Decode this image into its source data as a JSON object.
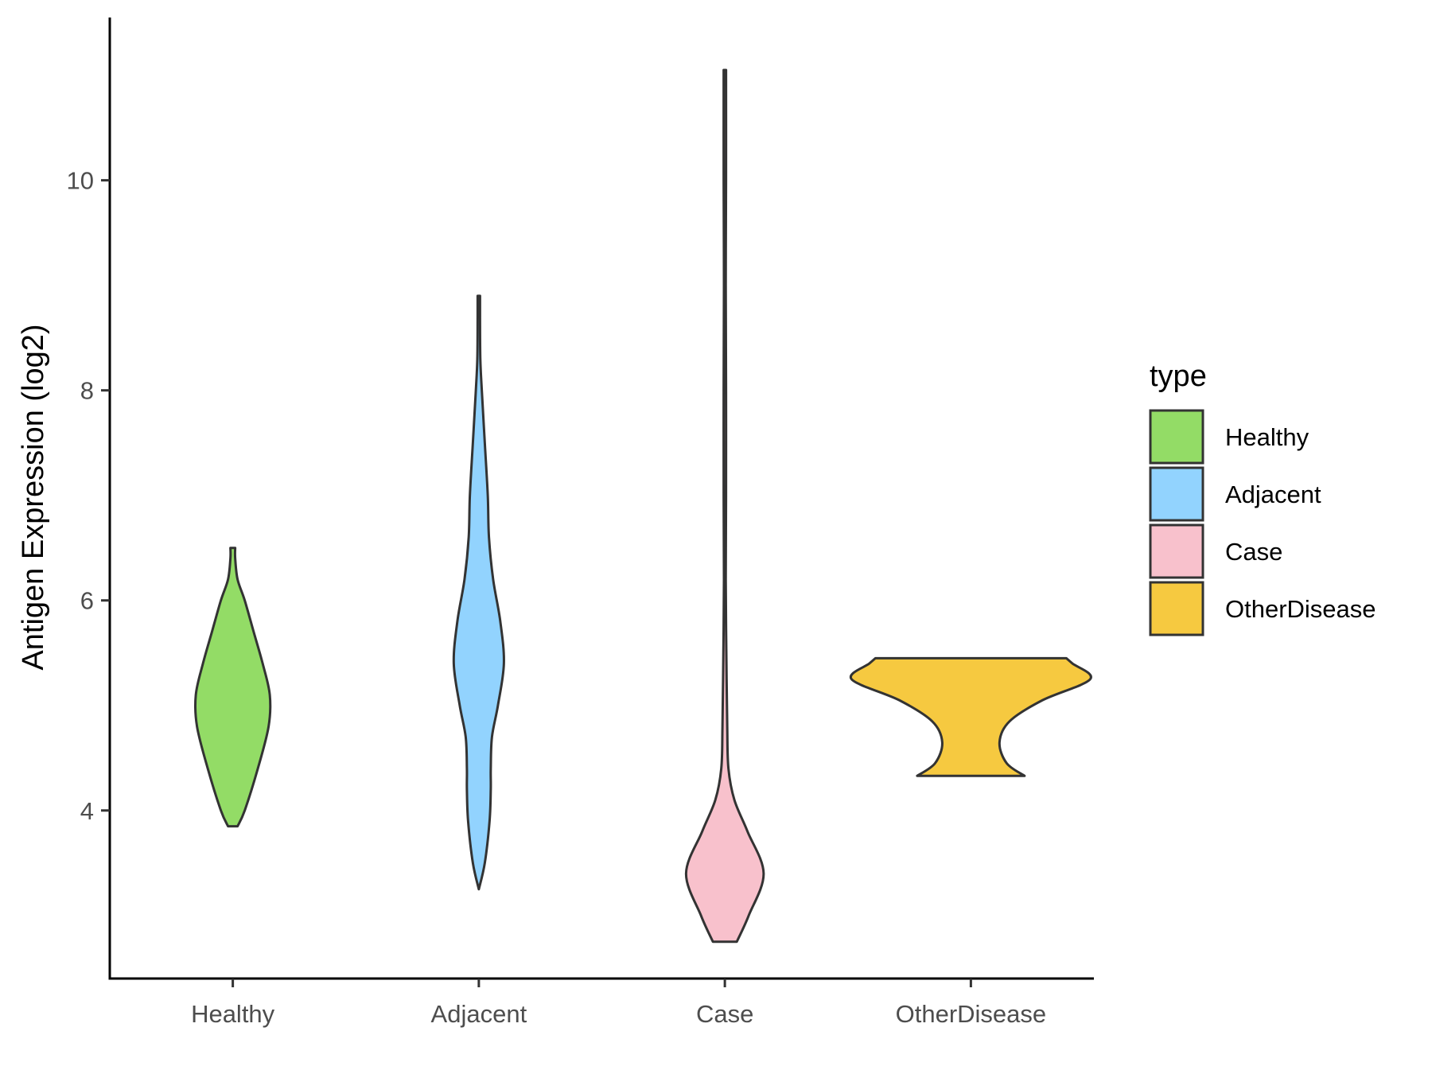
{
  "chart_data": {
    "type": "violin",
    "title": "",
    "xlabel": "",
    "ylabel": "Antigen Expression (log2)",
    "ylim": [
      2.4,
      11.55
    ],
    "yticks": [
      4,
      6,
      8,
      10
    ],
    "categories": [
      "Healthy",
      "Adjacent",
      "Case",
      "OtherDisease"
    ],
    "legend": {
      "title": "type",
      "position": "right",
      "entries": [
        "Healthy",
        "Adjacent",
        "Case",
        "OtherDisease"
      ]
    },
    "colors": {
      "Healthy": "#93dc66",
      "Adjacent": "#92d3fe",
      "Case": "#f8c1cc",
      "OtherDisease": "#f6c940"
    },
    "series": [
      {
        "name": "Healthy",
        "min": 3.85,
        "max": 6.5,
        "profile": [
          [
            3.85,
            0.08
          ],
          [
            4.0,
            0.2
          ],
          [
            4.4,
            0.42
          ],
          [
            4.8,
            0.6
          ],
          [
            5.1,
            0.62
          ],
          [
            5.4,
            0.5
          ],
          [
            5.7,
            0.35
          ],
          [
            6.0,
            0.2
          ],
          [
            6.2,
            0.08
          ],
          [
            6.4,
            0.04
          ],
          [
            6.5,
            0.04
          ]
        ]
      },
      {
        "name": "Adjacent",
        "min": 3.25,
        "max": 8.9,
        "profile": [
          [
            3.25,
            0.0
          ],
          [
            3.5,
            0.1
          ],
          [
            3.9,
            0.18
          ],
          [
            4.2,
            0.2
          ],
          [
            4.4,
            0.2
          ],
          [
            4.7,
            0.22
          ],
          [
            5.0,
            0.32
          ],
          [
            5.4,
            0.42
          ],
          [
            5.8,
            0.36
          ],
          [
            6.2,
            0.24
          ],
          [
            6.6,
            0.17
          ],
          [
            7.0,
            0.15
          ],
          [
            7.5,
            0.1
          ],
          [
            8.0,
            0.05
          ],
          [
            8.3,
            0.025
          ],
          [
            8.7,
            0.02
          ],
          [
            8.9,
            0.02
          ]
        ]
      },
      {
        "name": "Case",
        "min": 2.75,
        "max": 11.05,
        "profile": [
          [
            2.75,
            0.2
          ],
          [
            3.0,
            0.4
          ],
          [
            3.4,
            0.65
          ],
          [
            3.8,
            0.38
          ],
          [
            4.1,
            0.16
          ],
          [
            4.4,
            0.06
          ],
          [
            4.8,
            0.04
          ],
          [
            5.5,
            0.025
          ],
          [
            6.2,
            0.015
          ],
          [
            7.0,
            0.02
          ],
          [
            8.0,
            0.02
          ],
          [
            9.0,
            0.015
          ],
          [
            10.0,
            0.02
          ],
          [
            11.05,
            0.02
          ]
        ]
      },
      {
        "name": "OtherDisease",
        "min": 4.33,
        "max": 5.45,
        "profile": [
          [
            4.33,
            0.9
          ],
          [
            4.45,
            0.6
          ],
          [
            4.65,
            0.48
          ],
          [
            4.85,
            0.65
          ],
          [
            5.05,
            1.2
          ],
          [
            5.25,
            2.0
          ],
          [
            5.4,
            1.7
          ],
          [
            5.45,
            1.6
          ]
        ]
      }
    ]
  }
}
